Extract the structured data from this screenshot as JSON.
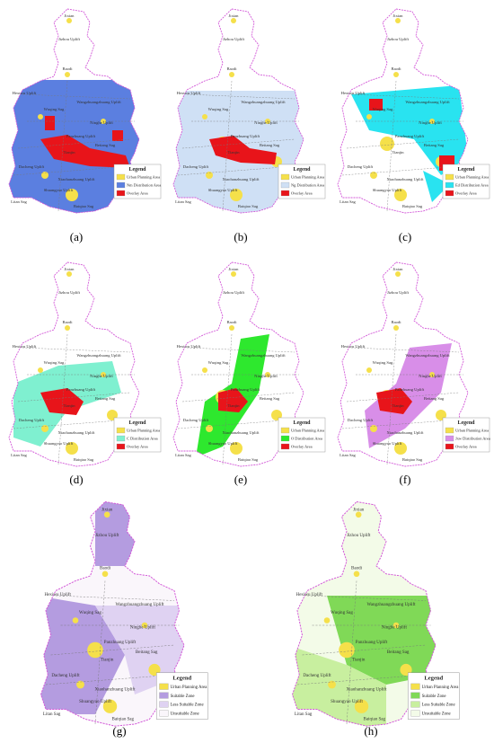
{
  "panels": [
    {
      "label": "(a)",
      "legend_title": "Legend",
      "legend": [
        {
          "text": "Urban Planning Area",
          "color": "#f5e04a"
        },
        {
          "text": "Nm Distribution Area",
          "color": "#5b7fe0"
        },
        {
          "text": "Overlay Area",
          "color": "#e8141a"
        }
      ]
    },
    {
      "label": "(b)",
      "legend_title": "Legend",
      "legend": [
        {
          "text": "Urban Planning Area",
          "color": "#f5e04a"
        },
        {
          "text": "Ng Distribution Area",
          "color": "#cfe0f5"
        },
        {
          "text": "Overlay Area",
          "color": "#e8141a"
        }
      ]
    },
    {
      "label": "(c)",
      "legend_title": "Legend",
      "legend": [
        {
          "text": "Urban Planning Area",
          "color": "#f5e04a"
        },
        {
          "text": "Ed Distribution Area",
          "color": "#29e3f0"
        },
        {
          "text": "Overlay Area",
          "color": "#e8141a"
        }
      ]
    },
    {
      "label": "(d)",
      "legend_title": "Legend",
      "legend": [
        {
          "text": "Urban Planning Area",
          "color": "#f5e04a"
        },
        {
          "text": "C Distribution Area",
          "color": "#7ff0d0"
        },
        {
          "text": "Overlay Area",
          "color": "#e8141a"
        }
      ]
    },
    {
      "label": "(e)",
      "legend_title": "Legend",
      "legend": [
        {
          "text": "Urban Planning Area",
          "color": "#f5e04a"
        },
        {
          "text": "O Distribution Area",
          "color": "#2ee82e"
        },
        {
          "text": "Overlay Area",
          "color": "#e8141a"
        }
      ]
    },
    {
      "label": "(f)",
      "legend_title": "Legend",
      "legend": [
        {
          "text": "Urban Planning Area",
          "color": "#f5e04a"
        },
        {
          "text": "Jxw Distribution Area",
          "color": "#d88ee8"
        },
        {
          "text": "Overlay Area",
          "color": "#e8141a"
        }
      ]
    },
    {
      "label": "(g)",
      "legend_title": "Legend",
      "legend": [
        {
          "text": "Urban Planning Area",
          "color": "#f5e04a"
        },
        {
          "text": "Suitable Zone",
          "color": "#b49ce0"
        },
        {
          "text": "Less Suitable Zone",
          "color": "#dfd2f2"
        },
        {
          "text": "Unsuitable Zone",
          "color": "#faf6fb"
        }
      ]
    },
    {
      "label": "(h)",
      "legend_title": "Legend",
      "legend": [
        {
          "text": "Urban Planning Area",
          "color": "#f5e04a"
        },
        {
          "text": "Suitable Zone",
          "color": "#80d957"
        },
        {
          "text": "Less Suitable Zone",
          "color": "#c8ef9f"
        },
        {
          "text": "Unsuitable Zone",
          "color": "#f3fbe8"
        }
      ]
    }
  ],
  "place_labels": [
    "Jixian",
    "Jizhou Uplift",
    "Baodi",
    "Hexiwu Uplift",
    "Wuqing Sag",
    "Wangzhuangzhuang Uplift",
    "Ninghe Uplift",
    "Panzhuang Uplift",
    "Beitang Sag",
    "Tianjin",
    "Dacheng Uplift",
    "Xiaohanzhuang Uplift",
    "Shuangyao Uplift",
    "Baiqiao Sag",
    "Litan Sag"
  ]
}
